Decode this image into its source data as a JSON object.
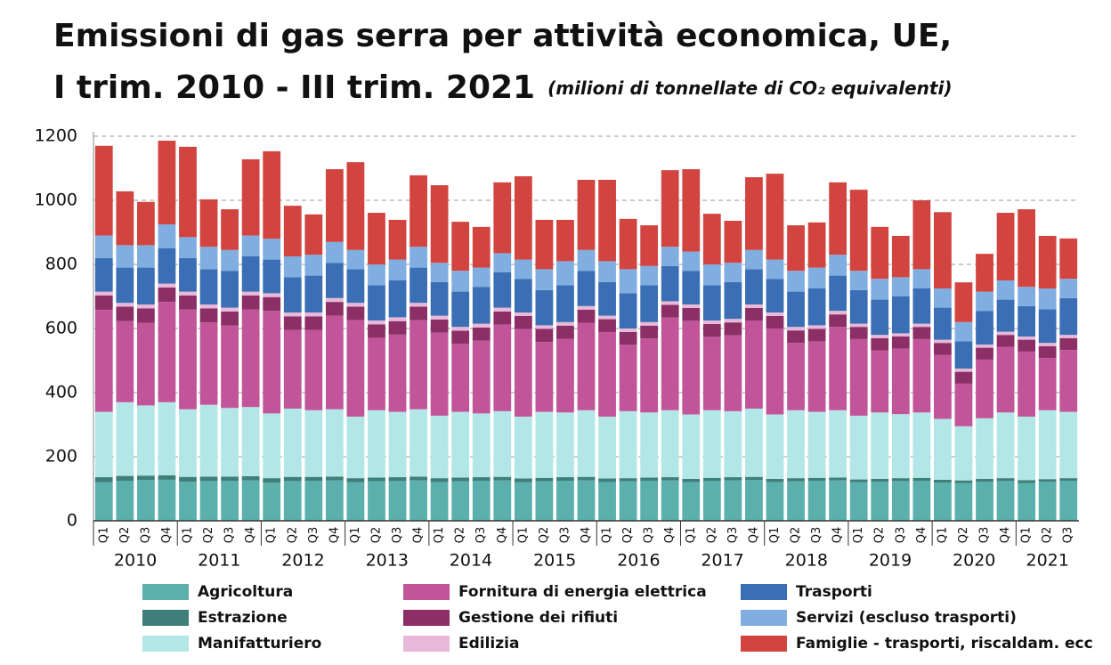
{
  "chart_data": {
    "type": "stacked-bar",
    "title": [
      "Emissioni di gas serra per attività economica, UE,",
      "I trim. 2010 - III trim. 2021"
    ],
    "subtitle": "(milioni di tonnellate di CO₂ equivalenti)",
    "categories": [
      "Q1",
      "Q2",
      "Q3",
      "Q4",
      "Q1",
      "Q2",
      "Q3",
      "Q4",
      "Q1",
      "Q2",
      "Q3",
      "Q4",
      "Q1",
      "Q2",
      "Q3",
      "Q4",
      "Q1",
      "Q2",
      "Q3",
      "Q4",
      "Q1",
      "Q2",
      "Q3",
      "Q4",
      "Q1",
      "Q2",
      "Q3",
      "Q4",
      "Q1",
      "Q2",
      "Q3",
      "Q4",
      "Q1",
      "Q2",
      "Q3",
      "Q4",
      "Q1",
      "Q2",
      "Q3",
      "Q4",
      "Q1",
      "Q2",
      "Q3",
      "Q4",
      "Q1",
      "Q2",
      "Q3"
    ],
    "years": [
      "2010",
      "2011",
      "2012",
      "2013",
      "2014",
      "2015",
      "2016",
      "2017",
      "2018",
      "2019",
      "2020",
      "2021"
    ],
    "ylim": [
      0,
      1200
    ],
    "yticks": [
      0,
      200,
      400,
      600,
      800,
      1000,
      1200
    ],
    "grid": true,
    "series": [
      {
        "name": "Agricoltura",
        "color": "#5bb0ad",
        "values": [
          120,
          125,
          127,
          128,
          122,
          124,
          125,
          126,
          119,
          124,
          125,
          126,
          120,
          123,
          124,
          126,
          121,
          123,
          125,
          126,
          120,
          123,
          125,
          126,
          121,
          123,
          125,
          126,
          121,
          124,
          126,
          127,
          121,
          123,
          125,
          126,
          120,
          122,
          124,
          125,
          119,
          118,
          122,
          124,
          118,
          122,
          125
        ]
      },
      {
        "name": "Estrazione",
        "color": "#3e7f7a",
        "values": [
          16,
          15,
          14,
          14,
          15,
          14,
          13,
          13,
          14,
          13,
          12,
          12,
          13,
          12,
          12,
          12,
          12,
          12,
          11,
          11,
          12,
          11,
          11,
          11,
          11,
          10,
          10,
          10,
          10,
          10,
          10,
          10,
          10,
          10,
          9,
          9,
          9,
          9,
          9,
          9,
          9,
          8,
          9,
          9,
          9,
          8,
          8
        ]
      },
      {
        "name": "Manifatturiero",
        "color": "#b3e6e6",
        "values": [
          204,
          230,
          219,
          228,
          211,
          224,
          214,
          216,
          202,
          213,
          208,
          210,
          192,
          210,
          204,
          210,
          195,
          205,
          199,
          205,
          193,
          206,
          202,
          208,
          193,
          209,
          203,
          209,
          201,
          211,
          206,
          213,
          201,
          212,
          206,
          210,
          199,
          207,
          200,
          204,
          190,
          169,
          189,
          205,
          198,
          215,
          207
        ]
      },
      {
        "name": "Fornitura di energia elettrica",
        "color": "#c2559a",
        "values": [
          318,
          253,
          258,
          313,
          311,
          257,
          257,
          304,
          320,
          245,
          250,
          292,
          301,
          226,
          241,
          278,
          259,
          212,
          227,
          270,
          273,
          218,
          230,
          273,
          264,
          207,
          231,
          289,
          292,
          229,
          237,
          274,
          268,
          210,
          220,
          260,
          239,
          194,
          204,
          229,
          200,
          133,
          183,
          205,
          203,
          163,
          193
        ]
      },
      {
        "name": "Gestione dei rifiuti",
        "color": "#8b2f66",
        "values": [
          45,
          45,
          45,
          45,
          44,
          44,
          44,
          44,
          43,
          43,
          43,
          43,
          42,
          42,
          42,
          42,
          41,
          41,
          41,
          41,
          41,
          41,
          41,
          41,
          40,
          40,
          40,
          40,
          40,
          40,
          40,
          40,
          39,
          39,
          39,
          39,
          38,
          38,
          38,
          38,
          37,
          37,
          37,
          37,
          37,
          37,
          37
        ]
      },
      {
        "name": "Edilizia",
        "color": "#e8b8d8",
        "values": [
          12,
          12,
          12,
          12,
          12,
          12,
          12,
          12,
          12,
          12,
          12,
          12,
          12,
          12,
          12,
          12,
          12,
          12,
          12,
          12,
          11,
          11,
          11,
          11,
          11,
          11,
          11,
          11,
          11,
          11,
          11,
          11,
          11,
          11,
          11,
          11,
          10,
          10,
          10,
          10,
          10,
          10,
          10,
          10,
          10,
          10,
          10
        ]
      },
      {
        "name": "Trasporti",
        "color": "#3a6fb5",
        "values": [
          105,
          110,
          115,
          110,
          105,
          110,
          115,
          110,
          105,
          110,
          115,
          110,
          105,
          110,
          115,
          110,
          105,
          110,
          115,
          110,
          105,
          110,
          115,
          110,
          105,
          110,
          115,
          110,
          105,
          110,
          115,
          110,
          105,
          110,
          115,
          110,
          105,
          110,
          115,
          110,
          100,
          85,
          105,
          100,
          95,
          105,
          115
        ]
      },
      {
        "name": "Servizi (escluso trasporti)",
        "color": "#80aee0",
        "values": [
          70,
          70,
          70,
          75,
          65,
          70,
          65,
          65,
          65,
          65,
          65,
          65,
          60,
          65,
          65,
          65,
          60,
          65,
          60,
          60,
          60,
          65,
          75,
          65,
          65,
          75,
          60,
          60,
          60,
          65,
          60,
          60,
          60,
          65,
          65,
          65,
          60,
          65,
          60,
          60,
          60,
          60,
          60,
          60,
          60,
          65,
          60
        ]
      },
      {
        "name": "Famiglie - trasporti, riscaldam. ecc",
        "color": "#d2443f",
        "values": [
          280,
          168,
          135,
          261,
          282,
          148,
          127,
          238,
          273,
          158,
          126,
          227,
          274,
          161,
          124,
          223,
          242,
          153,
          127,
          221,
          260,
          154,
          129,
          219,
          254,
          157,
          127,
          239,
          257,
          158,
          131,
          227,
          268,
          142,
          141,
          226,
          253,
          162,
          129,
          215,
          238,
          124,
          118,
          211,
          242,
          164,
          126
        ]
      }
    ]
  }
}
